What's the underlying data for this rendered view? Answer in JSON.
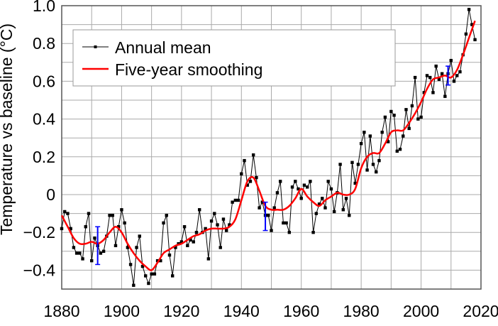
{
  "chart_data": {
    "type": "line",
    "title": "",
    "xlabel": "",
    "ylabel": "Temperature vs baseline (°C)",
    "xlim": [
      1880,
      2020
    ],
    "ylim": [
      -0.5,
      1.0
    ],
    "x_ticks": [
      1880,
      1900,
      1920,
      1940,
      1960,
      1980,
      2000,
      2020
    ],
    "y_ticks": [
      -0.4,
      -0.2,
      0,
      0.2,
      0.4,
      0.6,
      0.8,
      1.0
    ],
    "y_tick_labels": [
      "−0.4",
      "−0.2",
      "0",
      "0.2",
      "0.4",
      "0.6",
      "0.8",
      "1.0"
    ],
    "x_tick_labels": [
      "1880",
      "1900",
      "1920",
      "1940",
      "1960",
      "1980",
      "2000",
      "2020"
    ],
    "grid": true,
    "grid_x_step": 10,
    "grid_y_step": 0.1,
    "legend": {
      "position": "upper left",
      "entries": [
        {
          "label": "Annual mean",
          "color": "#000000",
          "marker": "square"
        },
        {
          "label": "Five-year smoothing",
          "color": "#ff0000",
          "marker": "none"
        }
      ]
    },
    "series": [
      {
        "name": "Annual mean",
        "color": "#000000",
        "x": [
          1880,
          1881,
          1882,
          1883,
          1884,
          1885,
          1886,
          1887,
          1888,
          1889,
          1890,
          1891,
          1892,
          1893,
          1894,
          1895,
          1896,
          1897,
          1898,
          1899,
          1900,
          1901,
          1902,
          1903,
          1904,
          1905,
          1906,
          1907,
          1908,
          1909,
          1910,
          1911,
          1912,
          1913,
          1914,
          1915,
          1916,
          1917,
          1918,
          1919,
          1920,
          1921,
          1922,
          1923,
          1924,
          1925,
          1926,
          1927,
          1928,
          1929,
          1930,
          1931,
          1932,
          1933,
          1934,
          1935,
          1936,
          1937,
          1938,
          1939,
          1940,
          1941,
          1942,
          1943,
          1944,
          1945,
          1946,
          1947,
          1948,
          1949,
          1950,
          1951,
          1952,
          1953,
          1954,
          1955,
          1956,
          1957,
          1958,
          1959,
          1960,
          1961,
          1962,
          1963,
          1964,
          1965,
          1966,
          1967,
          1968,
          1969,
          1970,
          1971,
          1972,
          1973,
          1974,
          1975,
          1976,
          1977,
          1978,
          1979,
          1980,
          1981,
          1982,
          1983,
          1984,
          1985,
          1986,
          1987,
          1988,
          1989,
          1990,
          1991,
          1992,
          1993,
          1994,
          1995,
          1996,
          1997,
          1998,
          1999,
          2000,
          2001,
          2002,
          2003,
          2004,
          2005,
          2006,
          2007,
          2008,
          2009,
          2010,
          2011,
          2012,
          2013,
          2014,
          2015,
          2016,
          2017,
          2018
        ],
        "values": [
          -0.18,
          -0.09,
          -0.1,
          -0.18,
          -0.28,
          -0.31,
          -0.31,
          -0.34,
          -0.17,
          -0.1,
          -0.35,
          -0.23,
          -0.27,
          -0.31,
          -0.3,
          -0.22,
          -0.11,
          -0.11,
          -0.27,
          -0.17,
          -0.08,
          -0.15,
          -0.28,
          -0.37,
          -0.48,
          -0.28,
          -0.22,
          -0.38,
          -0.43,
          -0.47,
          -0.42,
          -0.42,
          -0.35,
          -0.35,
          -0.15,
          -0.11,
          -0.32,
          -0.43,
          -0.28,
          -0.26,
          -0.25,
          -0.17,
          -0.27,
          -0.24,
          -0.25,
          -0.2,
          -0.08,
          -0.2,
          -0.18,
          -0.34,
          -0.14,
          -0.1,
          -0.16,
          -0.28,
          -0.13,
          -0.19,
          -0.16,
          -0.04,
          -0.03,
          -0.03,
          0.11,
          0.18,
          0.05,
          0.07,
          0.21,
          0.09,
          -0.07,
          -0.04,
          -0.11,
          -0.11,
          -0.19,
          -0.07,
          0.01,
          0.07,
          -0.15,
          -0.15,
          -0.2,
          0.04,
          0.07,
          0.03,
          -0.02,
          0.05,
          0.04,
          0.07,
          -0.2,
          -0.1,
          -0.05,
          -0.02,
          -0.07,
          0.07,
          0.03,
          -0.09,
          0.01,
          0.16,
          -0.08,
          -0.02,
          -0.11,
          0.17,
          0.06,
          0.16,
          0.27,
          0.33,
          0.13,
          0.31,
          0.16,
          0.12,
          0.18,
          0.33,
          0.41,
          0.28,
          0.44,
          0.42,
          0.23,
          0.24,
          0.31,
          0.45,
          0.35,
          0.47,
          0.62,
          0.4,
          0.41,
          0.54,
          0.63,
          0.62,
          0.54,
          0.68,
          0.61,
          0.64,
          0.52,
          0.64,
          0.71,
          0.6,
          0.63,
          0.65,
          0.74,
          0.85,
          0.98,
          0.9,
          0.82
        ]
      },
      {
        "name": "Five-year smoothing",
        "color": "#ff0000",
        "x": [
          1880,
          1882,
          1884,
          1886,
          1888,
          1890,
          1892,
          1894,
          1896,
          1898,
          1900,
          1902,
          1904,
          1906,
          1908,
          1910,
          1912,
          1914,
          1916,
          1918,
          1920,
          1922,
          1924,
          1926,
          1928,
          1930,
          1932,
          1934,
          1936,
          1938,
          1940,
          1942,
          1944,
          1946,
          1948,
          1950,
          1952,
          1954,
          1956,
          1958,
          1960,
          1962,
          1964,
          1966,
          1968,
          1970,
          1972,
          1974,
          1976,
          1978,
          1980,
          1982,
          1984,
          1986,
          1988,
          1990,
          1992,
          1994,
          1996,
          1998,
          2000,
          2002,
          2004,
          2006,
          2008,
          2010,
          2012,
          2014,
          2016,
          2018
        ],
        "values": [
          -0.11,
          -0.17,
          -0.23,
          -0.26,
          -0.26,
          -0.25,
          -0.26,
          -0.24,
          -0.2,
          -0.17,
          -0.2,
          -0.26,
          -0.31,
          -0.35,
          -0.38,
          -0.4,
          -0.36,
          -0.31,
          -0.29,
          -0.27,
          -0.26,
          -0.24,
          -0.22,
          -0.21,
          -0.19,
          -0.18,
          -0.18,
          -0.18,
          -0.17,
          -0.13,
          -0.03,
          0.07,
          0.09,
          0.02,
          -0.06,
          -0.08,
          -0.08,
          -0.08,
          -0.06,
          -0.02,
          0.03,
          -0.01,
          -0.04,
          -0.06,
          -0.03,
          -0.01,
          0.01,
          0.0,
          0.0,
          0.03,
          0.14,
          0.2,
          0.22,
          0.22,
          0.27,
          0.33,
          0.34,
          0.34,
          0.38,
          0.43,
          0.49,
          0.56,
          0.61,
          0.62,
          0.63,
          0.62,
          0.66,
          0.74,
          0.83,
          0.92
        ]
      }
    ],
    "error_bars": [
      {
        "x": 1892,
        "low": -0.37,
        "high": -0.17,
        "color": "#0000ff"
      },
      {
        "x": 1948,
        "low": -0.19,
        "high": -0.04,
        "color": "#0000ff"
      },
      {
        "x": 2009,
        "low": 0.58,
        "high": 0.68,
        "color": "#0000ff"
      }
    ]
  }
}
